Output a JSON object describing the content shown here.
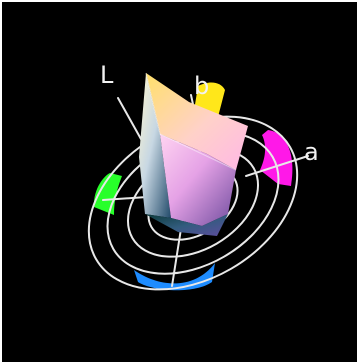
{
  "diagram": {
    "axes": {
      "L": "L",
      "a": "a",
      "b": "b"
    },
    "colors": {
      "background": "#000000",
      "ring_lines": "#e8e8e8",
      "segment_yellow": "#ffe71a",
      "segment_magenta": "#ff18e8",
      "segment_blue": "#1e8cff",
      "segment_green": "#28ff2a"
    }
  }
}
